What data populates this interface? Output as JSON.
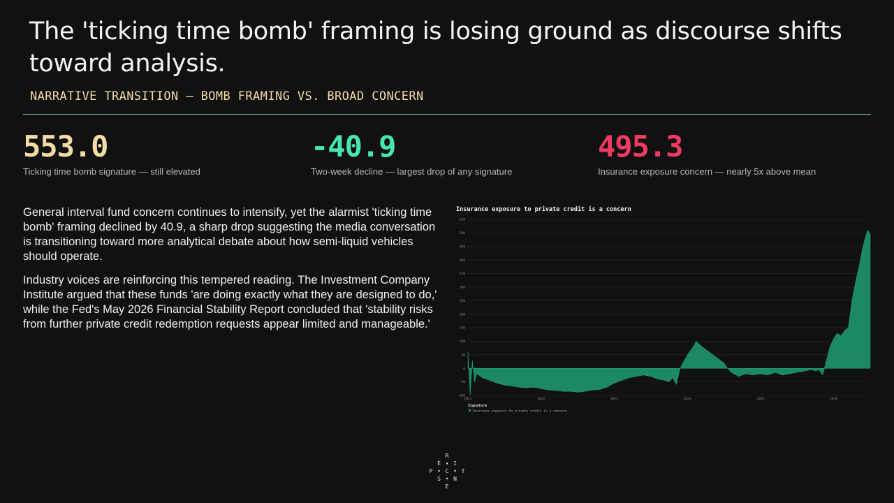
{
  "header": {
    "title": "The 'ticking time bomb' framing is losing ground as discourse shifts toward analysis.",
    "subtitle": "NARRATIVE TRANSITION — BOMB FRAMING VS. BROAD CONCERN"
  },
  "kpis": [
    {
      "value": "553.0",
      "label": "Ticking time bomb signature — still elevated",
      "color": "#f3dca6"
    },
    {
      "value": "-40.9",
      "label": "Two-week decline — largest drop of any signature",
      "color": "#47e6b1"
    },
    {
      "value": "495.3",
      "label": "Insurance exposure concern — nearly 5x above mean",
      "color": "#f03a61"
    }
  ],
  "body": {
    "paragraph1": "General interval fund concern continues to intensify, yet the alarmist 'ticking time bomb' framing declined by 40.9, a sharp drop suggesting the media conversation is transitioning toward more analytical debate about how semi-liquid vehicles should operate.",
    "paragraph2": "Industry voices are reinforcing this tempered reading. The Investment Company Institute argued that these funds 'are doing exactly what they are designed to do,' while the Fed's May 2026 Financial Stability Report concluded that 'stability risks from further private credit redemption requests appear limited and manageable.'"
  },
  "logo": {
    "letters": [
      "R",
      "E",
      "I",
      "P",
      "C",
      "T",
      "S",
      "N",
      "E"
    ]
  },
  "chart_data": {
    "type": "area",
    "title": "Insurance exposure to private credit is a concern",
    "xlabel": "",
    "ylabel": "",
    "xlim": [
      2021.0,
      2026.5
    ],
    "ylim": [
      -100,
      550
    ],
    "y_ticks": [
      -100,
      -50,
      0,
      50,
      100,
      150,
      200,
      250,
      300,
      350,
      400,
      450,
      500,
      550
    ],
    "x_ticks": [
      2021,
      2022,
      2023,
      2024,
      2025,
      2026
    ],
    "x_tick_labels": [
      "2021",
      "2022",
      "2023",
      "2024",
      "2025",
      "2026"
    ],
    "grid": true,
    "legend_title": "Signature",
    "legend_position": "bottom-left",
    "color": "#1f8f6a",
    "series": [
      {
        "name": "Insurance exposure to private credit is a concern",
        "x": [
          2021.0,
          2021.03,
          2021.06,
          2021.09,
          2021.12,
          2021.2,
          2021.3,
          2021.4,
          2021.5,
          2021.6,
          2021.7,
          2021.8,
          2021.9,
          2022.0,
          2022.1,
          2022.2,
          2022.3,
          2022.4,
          2022.5,
          2022.6,
          2022.7,
          2022.8,
          2022.9,
          2023.0,
          2023.1,
          2023.2,
          2023.3,
          2023.4,
          2023.5,
          2023.6,
          2023.7,
          2023.75,
          2023.8,
          2023.85,
          2023.9,
          2024.0,
          2024.08,
          2024.12,
          2024.2,
          2024.3,
          2024.4,
          2024.5,
          2024.55,
          2024.6,
          2024.7,
          2024.8,
          2024.9,
          2025.0,
          2025.1,
          2025.2,
          2025.3,
          2025.4,
          2025.5,
          2025.6,
          2025.7,
          2025.75,
          2025.8,
          2025.85,
          2025.9,
          2025.95,
          2026.0,
          2026.05,
          2026.1,
          2026.15,
          2026.2,
          2026.25,
          2026.3,
          2026.35,
          2026.4,
          2026.45,
          2026.47,
          2026.5
        ],
        "values": [
          60,
          -100,
          30,
          -50,
          -20,
          -35,
          -45,
          -55,
          -62,
          -65,
          -70,
          -72,
          -70,
          -75,
          -80,
          -82,
          -85,
          -85,
          -88,
          -85,
          -80,
          -78,
          -70,
          -55,
          -45,
          -35,
          -30,
          -25,
          -30,
          -40,
          -45,
          -50,
          -35,
          -60,
          0,
          50,
          80,
          100,
          80,
          60,
          40,
          20,
          0,
          -15,
          -30,
          -20,
          -25,
          -20,
          -25,
          -15,
          -25,
          -20,
          -15,
          -10,
          -5,
          -10,
          -5,
          -25,
          30,
          80,
          110,
          130,
          120,
          140,
          150,
          250,
          320,
          380,
          450,
          500,
          510,
          495
        ]
      }
    ]
  }
}
